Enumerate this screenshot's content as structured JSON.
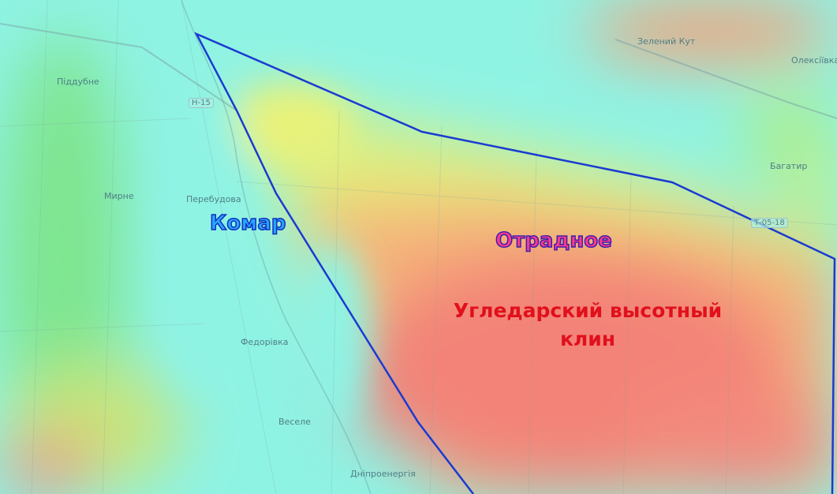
{
  "map": {
    "places": {
      "piddubne": "Піддубне",
      "myrne": "Мирне",
      "perebudova": "Перебудова",
      "zelenyi_kut": "Зелений Кут",
      "oleksiivka": "Олексіївка",
      "bahatyr": "Багатир",
      "fedorivka": "Федорівка",
      "vesele": "Веселе",
      "dniproenerhiia": "Дніпроенергія"
    },
    "roads": {
      "h15": "Н-15",
      "t0518": "Т-05-18"
    },
    "annotations": {
      "komar": "Комар",
      "otradnoe": "Отрадное",
      "ugledar_line1": "Угледарский высотный",
      "ugledar_line2": "клин"
    },
    "colors": {
      "outline": "#1a3bd1",
      "high_elevation": "#f47a7a",
      "low_elevation": "#8ff3e4"
    }
  }
}
